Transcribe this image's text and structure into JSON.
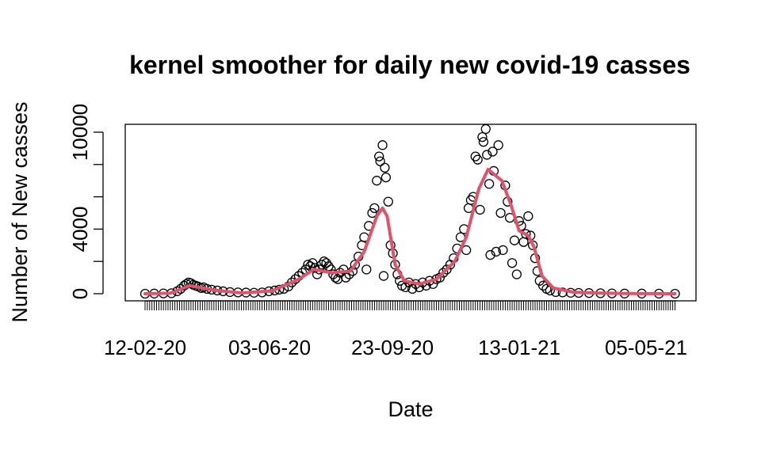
{
  "chart_data": {
    "type": "scatter",
    "title": "kernel smoother for daily new covid-19 casses",
    "xlabel": "Date",
    "ylabel": "Number of New casses",
    "x_tick_labels": [
      "12-02-20",
      "03-06-20",
      "23-09-20",
      "13-01-21",
      "05-05-21"
    ],
    "x_range": [
      "2020-02-12",
      "2021-05-20"
    ],
    "y_ticks": [
      0,
      4000,
      10000
    ],
    "y_ticks_unlabeled": [
      2000,
      6000,
      8000
    ],
    "ylim": [
      -400,
      10400
    ],
    "grid": false,
    "series": [
      {
        "kind": "points",
        "color": "#000000",
        "points": [
          {
            "x": "2020-02-12",
            "y": 0
          },
          {
            "x": "2020-02-20",
            "y": 10
          },
          {
            "x": "2020-02-28",
            "y": 20
          },
          {
            "x": "2020-03-06",
            "y": 30
          },
          {
            "x": "2020-03-11",
            "y": 150
          },
          {
            "x": "2020-03-14",
            "y": 300
          },
          {
            "x": "2020-03-17",
            "y": 500
          },
          {
            "x": "2020-03-19",
            "y": 600
          },
          {
            "x": "2020-03-21",
            "y": 700
          },
          {
            "x": "2020-03-23",
            "y": 650
          },
          {
            "x": "2020-03-25",
            "y": 550
          },
          {
            "x": "2020-03-27",
            "y": 500
          },
          {
            "x": "2020-03-29",
            "y": 450
          },
          {
            "x": "2020-04-01",
            "y": 350
          },
          {
            "x": "2020-04-03",
            "y": 400
          },
          {
            "x": "2020-04-06",
            "y": 300
          },
          {
            "x": "2020-04-10",
            "y": 250
          },
          {
            "x": "2020-04-15",
            "y": 200
          },
          {
            "x": "2020-04-20",
            "y": 150
          },
          {
            "x": "2020-04-26",
            "y": 100
          },
          {
            "x": "2020-05-03",
            "y": 80
          },
          {
            "x": "2020-05-10",
            "y": 70
          },
          {
            "x": "2020-05-17",
            "y": 60
          },
          {
            "x": "2020-05-24",
            "y": 80
          },
          {
            "x": "2020-05-30",
            "y": 150
          },
          {
            "x": "2020-06-04",
            "y": 200
          },
          {
            "x": "2020-06-08",
            "y": 250
          },
          {
            "x": "2020-06-12",
            "y": 300
          },
          {
            "x": "2020-06-16",
            "y": 450
          },
          {
            "x": "2020-06-19",
            "y": 700
          },
          {
            "x": "2020-06-22",
            "y": 900
          },
          {
            "x": "2020-06-25",
            "y": 1100
          },
          {
            "x": "2020-06-28",
            "y": 1300
          },
          {
            "x": "2020-07-01",
            "y": 1500
          },
          {
            "x": "2020-07-03",
            "y": 1800
          },
          {
            "x": "2020-07-05",
            "y": 1700
          },
          {
            "x": "2020-07-07",
            "y": 1900
          },
          {
            "x": "2020-07-09",
            "y": 1600
          },
          {
            "x": "2020-07-11",
            "y": 1200
          },
          {
            "x": "2020-07-13",
            "y": 1500
          },
          {
            "x": "2020-07-15",
            "y": 1800
          },
          {
            "x": "2020-07-17",
            "y": 2000
          },
          {
            "x": "2020-07-19",
            "y": 1900
          },
          {
            "x": "2020-07-21",
            "y": 1700
          },
          {
            "x": "2020-07-23",
            "y": 1500
          },
          {
            "x": "2020-07-25",
            "y": 1200
          },
          {
            "x": "2020-07-27",
            "y": 1000
          },
          {
            "x": "2020-07-29",
            "y": 900
          },
          {
            "x": "2020-07-31",
            "y": 1300
          },
          {
            "x": "2020-08-03",
            "y": 1500
          },
          {
            "x": "2020-08-05",
            "y": 1000
          },
          {
            "x": "2020-08-08",
            "y": 1200
          },
          {
            "x": "2020-08-11",
            "y": 1400
          },
          {
            "x": "2020-08-13",
            "y": 1800
          },
          {
            "x": "2020-08-16",
            "y": 2300
          },
          {
            "x": "2020-08-19",
            "y": 3000
          },
          {
            "x": "2020-08-21",
            "y": 3500
          },
          {
            "x": "2020-08-23",
            "y": 1500
          },
          {
            "x": "2020-08-25",
            "y": 4200
          },
          {
            "x": "2020-08-28",
            "y": 5000
          },
          {
            "x": "2020-08-30",
            "y": 5300
          },
          {
            "x": "2020-09-01",
            "y": 7000
          },
          {
            "x": "2020-09-03",
            "y": 8500
          },
          {
            "x": "2020-09-04",
            "y": 8200
          },
          {
            "x": "2020-09-06",
            "y": 9200
          },
          {
            "x": "2020-09-07",
            "y": 1100
          },
          {
            "x": "2020-09-08",
            "y": 7800
          },
          {
            "x": "2020-09-09",
            "y": 7200
          },
          {
            "x": "2020-09-11",
            "y": 5700
          },
          {
            "x": "2020-09-13",
            "y": 3000
          },
          {
            "x": "2020-09-15",
            "y": 2500
          },
          {
            "x": "2020-09-17",
            "y": 1800
          },
          {
            "x": "2020-09-19",
            "y": 1200
          },
          {
            "x": "2020-09-21",
            "y": 800
          },
          {
            "x": "2020-09-23",
            "y": 500
          },
          {
            "x": "2020-09-26",
            "y": 400
          },
          {
            "x": "2020-09-29",
            "y": 700
          },
          {
            "x": "2020-10-02",
            "y": 300
          },
          {
            "x": "2020-10-05",
            "y": 600
          },
          {
            "x": "2020-10-08",
            "y": 400
          },
          {
            "x": "2020-10-11",
            "y": 700
          },
          {
            "x": "2020-10-14",
            "y": 500
          },
          {
            "x": "2020-10-17",
            "y": 800
          },
          {
            "x": "2020-10-20",
            "y": 600
          },
          {
            "x": "2020-10-23",
            "y": 900
          },
          {
            "x": "2020-10-26",
            "y": 1000
          },
          {
            "x": "2020-10-29",
            "y": 1300
          },
          {
            "x": "2020-11-01",
            "y": 1500
          },
          {
            "x": "2020-11-04",
            "y": 1800
          },
          {
            "x": "2020-11-07",
            "y": 2200
          },
          {
            "x": "2020-11-10",
            "y": 2800
          },
          {
            "x": "2020-11-13",
            "y": 3500
          },
          {
            "x": "2020-11-16",
            "y": 4000
          },
          {
            "x": "2020-11-18",
            "y": 2700
          },
          {
            "x": "2020-11-20",
            "y": 5300
          },
          {
            "x": "2020-11-22",
            "y": 5800
          },
          {
            "x": "2020-11-24",
            "y": 6000
          },
          {
            "x": "2020-11-26",
            "y": 8500
          },
          {
            "x": "2020-11-28",
            "y": 8300
          },
          {
            "x": "2020-11-30",
            "y": 5200
          },
          {
            "x": "2020-12-02",
            "y": 9700
          },
          {
            "x": "2020-12-03",
            "y": 9400
          },
          {
            "x": "2020-12-05",
            "y": 10200
          },
          {
            "x": "2020-12-06",
            "y": 8600
          },
          {
            "x": "2020-12-08",
            "y": 6800
          },
          {
            "x": "2020-12-09",
            "y": 2400
          },
          {
            "x": "2020-12-11",
            "y": 8800
          },
          {
            "x": "2020-12-12",
            "y": 7600
          },
          {
            "x": "2020-12-14",
            "y": 2600
          },
          {
            "x": "2020-12-16",
            "y": 9200
          },
          {
            "x": "2020-12-18",
            "y": 5000
          },
          {
            "x": "2020-12-20",
            "y": 2700
          },
          {
            "x": "2020-12-22",
            "y": 6700
          },
          {
            "x": "2020-12-24",
            "y": 5700
          },
          {
            "x": "2020-12-26",
            "y": 4700
          },
          {
            "x": "2020-12-28",
            "y": 1900
          },
          {
            "x": "2020-12-30",
            "y": 3300
          },
          {
            "x": "2021-01-01",
            "y": 1200
          },
          {
            "x": "2021-01-03",
            "y": 4500
          },
          {
            "x": "2021-01-05",
            "y": 4200
          },
          {
            "x": "2021-01-07",
            "y": 3200
          },
          {
            "x": "2021-01-09",
            "y": 3700
          },
          {
            "x": "2021-01-11",
            "y": 4800
          },
          {
            "x": "2021-01-13",
            "y": 3600
          },
          {
            "x": "2021-01-15",
            "y": 3000
          },
          {
            "x": "2021-01-17",
            "y": 2200
          },
          {
            "x": "2021-01-19",
            "y": 1400
          },
          {
            "x": "2021-01-21",
            "y": 800
          },
          {
            "x": "2021-01-24",
            "y": 500
          },
          {
            "x": "2021-01-27",
            "y": 300
          },
          {
            "x": "2021-01-30",
            "y": 200
          },
          {
            "x": "2021-02-04",
            "y": 100
          },
          {
            "x": "2021-02-10",
            "y": 80
          },
          {
            "x": "2021-02-17",
            "y": 60
          },
          {
            "x": "2021-02-24",
            "y": 50
          },
          {
            "x": "2021-03-05",
            "y": 40
          },
          {
            "x": "2021-03-15",
            "y": 30
          },
          {
            "x": "2021-03-25",
            "y": 20
          },
          {
            "x": "2021-04-05",
            "y": 10
          },
          {
            "x": "2021-04-20",
            "y": 10
          },
          {
            "x": "2021-05-05",
            "y": 5
          },
          {
            "x": "2021-05-19",
            "y": 0
          }
        ]
      },
      {
        "kind": "smoother",
        "color": "#df536b",
        "points": [
          {
            "x": "2020-02-12",
            "y": 0
          },
          {
            "x": "2020-03-05",
            "y": 30
          },
          {
            "x": "2020-03-22",
            "y": 500
          },
          {
            "x": "2020-04-12",
            "y": 220
          },
          {
            "x": "2020-05-06",
            "y": 50
          },
          {
            "x": "2020-06-02",
            "y": 180
          },
          {
            "x": "2020-06-25",
            "y": 900
          },
          {
            "x": "2020-07-08",
            "y": 1500
          },
          {
            "x": "2020-07-24",
            "y": 1300
          },
          {
            "x": "2020-08-09",
            "y": 1400
          },
          {
            "x": "2020-08-21",
            "y": 2600
          },
          {
            "x": "2020-09-01",
            "y": 4800
          },
          {
            "x": "2020-09-06",
            "y": 5300
          },
          {
            "x": "2020-09-10",
            "y": 4800
          },
          {
            "x": "2020-09-17",
            "y": 1800
          },
          {
            "x": "2020-09-25",
            "y": 800
          },
          {
            "x": "2020-10-08",
            "y": 600
          },
          {
            "x": "2020-10-23",
            "y": 900
          },
          {
            "x": "2020-11-08",
            "y": 2000
          },
          {
            "x": "2020-11-18",
            "y": 3500
          },
          {
            "x": "2020-11-29",
            "y": 6500
          },
          {
            "x": "2020-12-07",
            "y": 7700
          },
          {
            "x": "2020-12-19",
            "y": 7000
          },
          {
            "x": "2020-12-27",
            "y": 5500
          },
          {
            "x": "2021-01-03",
            "y": 3900
          },
          {
            "x": "2021-01-11",
            "y": 3600
          },
          {
            "x": "2021-01-16",
            "y": 2900
          },
          {
            "x": "2021-01-23",
            "y": 1100
          },
          {
            "x": "2021-02-02",
            "y": 350
          },
          {
            "x": "2021-02-19",
            "y": 100
          },
          {
            "x": "2021-03-12",
            "y": 40
          },
          {
            "x": "2021-04-07",
            "y": 15
          },
          {
            "x": "2021-05-19",
            "y": 0
          }
        ]
      }
    ]
  }
}
